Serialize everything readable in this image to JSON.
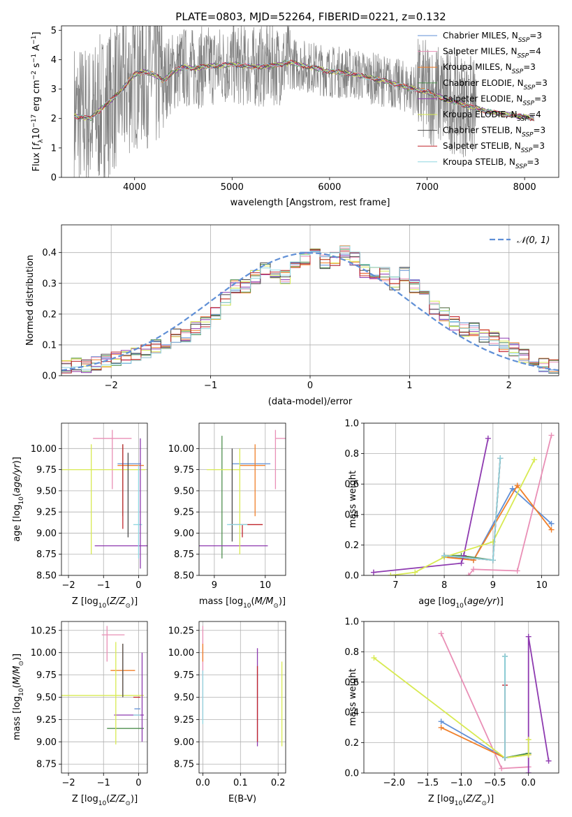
{
  "title": "PLATE=0803, MJD=52264, FIBERID=0221, z=0.132",
  "colors": {
    "Chabrier MILES": "#5f8fd6",
    "Salpeter MILES": "#e98fb6",
    "Kroupa MILES": "#f07f2a",
    "Chabrier ELODIE": "#4f8f4f",
    "Salpeter ELODIE": "#8e3ab0",
    "Kroupa ELODIE": "#d8ea52",
    "Chabrier STELIB": "#4a4a4a",
    "Salpeter STELIB": "#c0262c",
    "Kroupa STELIB": "#8fd6e0",
    "data": "#808080",
    "gauss": "#5f8fd6"
  },
  "chart_data": [
    {
      "type": "line",
      "panel": "spectrum",
      "title": "PLATE=0803, MJD=52264, FIBERID=0221, z=0.132",
      "xlabel": "wavelength [Angstrom, rest frame]",
      "ylabel": "Flux [fλ10⁻¹⁷ erg cm⁻² s⁻¹ A⁻¹]",
      "xlim": [
        3250,
        8350
      ],
      "ylim": [
        0,
        5.15
      ],
      "xticks": [
        4000,
        5000,
        6000,
        7000,
        8000
      ],
      "yticks": [
        0,
        1,
        2,
        3,
        4,
        5
      ],
      "grid": false,
      "legend_position": "top-right",
      "legend": [
        {
          "base": "Chabrier MILES, N",
          "sub": "SSP",
          "tail": "=3"
        },
        {
          "base": "Salpeter MILES, N",
          "sub": "SSP",
          "tail": "=4"
        },
        {
          "base": "Kroupa MILES, N",
          "sub": "SSP",
          "tail": "=3"
        },
        {
          "base": "Chabrier ELODIE, N",
          "sub": "SSP",
          "tail": "=3"
        },
        {
          "base": "Salpeter ELODIE, N",
          "sub": "SSP",
          "tail": "=3"
        },
        {
          "base": "Kroupa ELODIE, N",
          "sub": "SSP",
          "tail": "=4"
        },
        {
          "base": "Chabrier STELIB, N",
          "sub": "SSP",
          "tail": "=3"
        },
        {
          "base": "Salpeter STELIB, N",
          "sub": "SSP",
          "tail": "=3"
        },
        {
          "base": "Kroupa STELIB, N",
          "sub": "SSP",
          "tail": "=3"
        }
      ],
      "model_continuum": {
        "x": [
          3380,
          3450,
          3550,
          3650,
          3750,
          3850,
          3950,
          4000,
          4100,
          4200,
          4300,
          4400,
          4500,
          4600,
          4700,
          4800,
          4900,
          5000,
          5200,
          5400,
          5600,
          5800,
          6000,
          6200,
          6400,
          6600,
          6800,
          7000,
          7200,
          7400,
          7600,
          7800,
          8000,
          8100
        ],
        "y": [
          2.1,
          2.05,
          2.0,
          2.3,
          2.6,
          2.9,
          3.3,
          3.5,
          3.6,
          3.5,
          3.3,
          3.6,
          3.75,
          3.7,
          3.75,
          3.8,
          3.8,
          3.85,
          3.75,
          3.8,
          3.9,
          3.75,
          3.6,
          3.55,
          3.4,
          3.25,
          3.05,
          2.9,
          2.65,
          2.45,
          2.25,
          2.15,
          2.05,
          2.0
        ]
      }
    },
    {
      "type": "bar",
      "panel": "residuals",
      "xlabel": "(data-model)/error",
      "ylabel": "Normed distribution",
      "xlim": [
        -2.5,
        2.5
      ],
      "ylim": [
        0,
        0.49
      ],
      "xticks": [
        -2,
        -1,
        0,
        1,
        2
      ],
      "yticks": [
        0.0,
        0.1,
        0.2,
        0.3,
        0.4
      ],
      "grid": true,
      "legend_position": "top-right",
      "legend": [
        "𝒩(0, 1)"
      ],
      "gaussian": {
        "mean": 0,
        "sigma": 1
      },
      "bin_edges_range": [
        -2.5,
        2.5
      ],
      "bins": 50,
      "histogram": [
        0.03,
        0.035,
        0.03,
        0.04,
        0.05,
        0.055,
        0.06,
        0.07,
        0.08,
        0.095,
        0.11,
        0.13,
        0.13,
        0.155,
        0.17,
        0.2,
        0.25,
        0.29,
        0.29,
        0.32,
        0.35,
        0.34,
        0.32,
        0.36,
        0.38,
        0.39,
        0.37,
        0.38,
        0.4,
        0.38,
        0.34,
        0.33,
        0.33,
        0.3,
        0.33,
        0.29,
        0.26,
        0.22,
        0.2,
        0.17,
        0.15,
        0.15,
        0.13,
        0.12,
        0.1,
        0.085,
        0.065,
        0.05,
        0.035,
        0.03
      ]
    },
    {
      "type": "scatter",
      "panel": "age-vs-Z",
      "xlabel": "Z [log10(Z/Z⊙)]",
      "ylabel": "age [log10(age/yr)]",
      "xlim": [
        -2.2,
        0.25
      ],
      "ylim": [
        8.5,
        10.3
      ],
      "xticks": [
        -2,
        -1,
        0
      ],
      "yticks": [
        8.5,
        8.75,
        9.0,
        9.25,
        9.5,
        9.75,
        10.0
      ],
      "grid": true,
      "points": [
        {
          "model": "Chabrier MILES",
          "x": -0.05,
          "y": 9.82,
          "xerr": [
            0.55,
            0.12
          ],
          "yerr": [
            0.0,
            0.0
          ]
        },
        {
          "model": "Salpeter MILES",
          "x": -0.75,
          "y": 10.12,
          "xerr": [
            0.55,
            0.55
          ],
          "yerr": [
            0.6,
            0.1
          ]
        },
        {
          "model": "Kroupa MILES",
          "x": -0.05,
          "y": 9.8,
          "xerr": [
            0.55,
            0.2
          ],
          "yerr": [
            0.0,
            0.0
          ]
        },
        {
          "model": "Chabrier ELODIE",
          "x": -0.45,
          "y": 9.6,
          "xerr": [
            0.0,
            0.0
          ],
          "yerr": [
            0.4,
            0.45
          ]
        },
        {
          "model": "Salpeter ELODIE",
          "x": -0.5,
          "y": 8.85,
          "xerr": [
            0.75,
            0.75
          ],
          "yerr": [
            0.0,
            0.0
          ]
        },
        {
          "model": "Kroupa ELODIE",
          "x": -1.35,
          "y": 9.75,
          "xerr": [
            0.85,
            1.55
          ],
          "yerr": [
            1.0,
            0.3
          ]
        },
        {
          "model": "Chabrier STELIB",
          "x": -0.3,
          "y": 9.5,
          "xerr": [
            0.0,
            0.0
          ],
          "yerr": [
            0.55,
            0.45
          ]
        },
        {
          "model": "Salpeter STELIB",
          "x": -0.45,
          "y": 9.55,
          "xerr": [
            0.0,
            0.0
          ],
          "yerr": [
            0.5,
            0.5
          ]
        },
        {
          "model": "Kroupa STELIB",
          "x": 0.0,
          "y": 9.1,
          "xerr": [
            0.15,
            0.1
          ],
          "yerr": [
            0.4,
            0.7
          ]
        },
        {
          "model": "Salpeter ELODIE",
          "x": 0.05,
          "y": 9.3,
          "xerr": [
            0.0,
            0.0
          ],
          "yerr": [
            0.72,
            0.82
          ]
        }
      ]
    },
    {
      "type": "scatter",
      "panel": "age-vs-mass",
      "xlabel": "mass [log10(M/M⊙)]",
      "ylabel": "",
      "xlim": [
        8.7,
        10.4
      ],
      "ylim": [
        8.5,
        10.3
      ],
      "xticks": [
        9,
        10
      ],
      "yticks": [
        8.5,
        8.75,
        9.0,
        9.25,
        9.5,
        9.75,
        10.0
      ],
      "grid": true,
      "points": [
        {
          "model": "Chabrier MILES",
          "x": 9.85,
          "y": 9.82,
          "xerr": [
            0.5,
            0.25
          ],
          "yerr": [
            0.0,
            0.0
          ]
        },
        {
          "model": "Salpeter MILES",
          "x": 10.2,
          "y": 10.12,
          "xerr": [
            0.0,
            0.2
          ],
          "yerr": [
            0.6,
            0.1
          ]
        },
        {
          "model": "Kroupa MILES",
          "x": 9.8,
          "y": 9.8,
          "xerr": [
            0.3,
            0.2
          ],
          "yerr": [
            0.6,
            0.25
          ]
        },
        {
          "model": "Chabrier ELODIE",
          "x": 9.15,
          "y": 9.4,
          "xerr": [
            0.0,
            0.0
          ],
          "yerr": [
            0.7,
            0.75
          ]
        },
        {
          "model": "Salpeter ELODIE",
          "x": 9.35,
          "y": 8.85,
          "xerr": [
            0.65,
            0.7
          ],
          "yerr": [
            0.0,
            0.0
          ]
        },
        {
          "model": "Kroupa ELODIE",
          "x": 9.5,
          "y": 9.75,
          "xerr": [
            0.65,
            0.0
          ],
          "yerr": [
            1.0,
            0.25
          ]
        },
        {
          "model": "Chabrier STELIB",
          "x": 9.35,
          "y": 9.5,
          "xerr": [
            0.0,
            0.0
          ],
          "yerr": [
            0.6,
            0.5
          ]
        },
        {
          "model": "Salpeter STELIB",
          "x": 9.55,
          "y": 9.1,
          "xerr": [
            0.25,
            0.4
          ],
          "yerr": [
            0.15,
            0.0
          ]
        },
        {
          "model": "Kroupa STELIB",
          "x": 9.65,
          "y": 9.1,
          "xerr": [
            0.4,
            0.0
          ],
          "yerr": [
            0.0,
            0.0
          ]
        }
      ]
    },
    {
      "type": "line",
      "panel": "mass-weight-vs-age",
      "xlabel": "age [log10(age/yr)]",
      "ylabel": "mass weight",
      "xlim": [
        6.35,
        10.35
      ],
      "ylim": [
        0,
        1.0
      ],
      "xticks": [
        7,
        8,
        9,
        10
      ],
      "yticks": [
        0.0,
        0.2,
        0.4,
        0.6,
        0.8,
        1.0
      ],
      "grid": true,
      "series": [
        {
          "model": "Chabrier MILES",
          "x": [
            8.0,
            8.6,
            9.4,
            10.2
          ],
          "y": [
            0.13,
            0.1,
            0.57,
            0.34
          ]
        },
        {
          "model": "Salpeter MILES",
          "x": [
            8.5,
            8.6,
            9.5,
            10.2
          ],
          "y": [
            0.0,
            0.04,
            0.03,
            0.92
          ]
        },
        {
          "model": "Kroupa MILES",
          "x": [
            8.0,
            8.6,
            9.5,
            10.2
          ],
          "y": [
            0.12,
            0.1,
            0.59,
            0.3
          ]
        },
        {
          "model": "Chabrier ELODIE",
          "x": [
            8.0,
            8.35,
            9.0
          ],
          "y": [
            0.13,
            0.13,
            0.1
          ]
        },
        {
          "model": "Salpeter ELODIE",
          "x": [
            6.55,
            8.35,
            8.4,
            8.9
          ],
          "y": [
            0.02,
            0.08,
            0.13,
            0.9
          ]
        },
        {
          "model": "Kroupa ELODIE",
          "x": [
            6.9,
            7.4,
            8.0,
            9.0,
            9.85
          ],
          "y": [
            0.0,
            0.02,
            0.12,
            0.22,
            0.76
          ]
        },
        {
          "model": "Chabrier STELIB",
          "x": [
            8.0,
            9.0,
            9.15
          ],
          "y": [
            0.13,
            0.1,
            0.77
          ]
        },
        {
          "model": "Salpeter STELIB",
          "x": [
            8.0,
            9.0,
            9.15
          ],
          "y": [
            0.13,
            0.1,
            0.77
          ]
        },
        {
          "model": "Kroupa STELIB",
          "x": [
            8.0,
            9.0,
            9.15
          ],
          "y": [
            0.13,
            0.1,
            0.77
          ]
        }
      ]
    },
    {
      "type": "scatter",
      "panel": "mass-vs-Z",
      "xlabel": "Z [log10(Z/Z⊙)]",
      "ylabel": "mass [log10(M/M⊙)]",
      "xlim": [
        -2.2,
        0.25
      ],
      "ylim": [
        8.65,
        10.35
      ],
      "xticks": [
        -2,
        -1,
        0
      ],
      "yticks": [
        8.75,
        9.0,
        9.25,
        9.5,
        9.75,
        10.0,
        10.25
      ],
      "grid": true,
      "points": [
        {
          "model": "Chabrier MILES",
          "x": 0.0,
          "y": 9.37,
          "xerr": [
            0.12,
            0.05
          ],
          "yerr": [
            0.0,
            0.0
          ]
        },
        {
          "model": "Salpeter MILES",
          "x": -0.9,
          "y": 10.2,
          "xerr": [
            0.15,
            0.5
          ],
          "yerr": [
            0.3,
            0.1
          ]
        },
        {
          "model": "Kroupa MILES",
          "x": -0.45,
          "y": 9.8,
          "xerr": [
            0.35,
            0.35
          ],
          "yerr": [
            0.3,
            0.3
          ]
        },
        {
          "model": "Chabrier ELODIE",
          "x": -0.3,
          "y": 9.15,
          "xerr": [
            0.6,
            0.45
          ],
          "yerr": [
            0.0,
            0.0
          ]
        },
        {
          "model": "Salpeter ELODIE",
          "x": -0.3,
          "y": 9.3,
          "xerr": [
            0.4,
            0.45
          ],
          "yerr": [
            0.0,
            0.0
          ]
        },
        {
          "model": "Kroupa ELODIE",
          "x": -0.65,
          "y": 9.52,
          "xerr": [
            1.55,
            0.8
          ],
          "yerr": [
            0.55,
            0.6
          ]
        },
        {
          "model": "Chabrier STELIB",
          "x": -0.45,
          "y": 9.6,
          "xerr": [
            0.0,
            0.0
          ],
          "yerr": [
            0.1,
            0.5
          ]
        },
        {
          "model": "Salpeter STELIB",
          "x": -0.05,
          "y": 9.5,
          "xerr": [
            0.1,
            0.1
          ],
          "yerr": [
            0.0,
            0.0
          ]
        },
        {
          "model": "Kroupa STELIB",
          "x": -0.05,
          "y": 9.3,
          "xerr": [
            0.1,
            0.1
          ],
          "yerr": [
            0.0,
            0.0
          ]
        },
        {
          "model": "Salpeter ELODIE",
          "x": 0.1,
          "y": 9.7,
          "xerr": [
            0.0,
            0.0
          ],
          "yerr": [
            0.7,
            0.3
          ]
        }
      ]
    },
    {
      "type": "scatter",
      "panel": "mass-vs-EBV",
      "xlabel": "E(B-V)",
      "ylabel": "",
      "xlim": [
        -0.01,
        0.22
      ],
      "ylim": [
        8.65,
        10.35
      ],
      "xticks": [
        0.0,
        0.1,
        0.2
      ],
      "yticks": [
        8.75,
        9.0,
        9.25,
        9.5,
        9.75,
        10.0,
        10.25
      ],
      "grid": true,
      "points": [
        {
          "model": "Salpeter MILES",
          "x": 0.0,
          "y": 9.8,
          "xerr": [
            0.0,
            0.0
          ],
          "yerr": [
            0.55,
            0.5
          ]
        },
        {
          "model": "Kroupa MILES",
          "x": 0.0,
          "y": 9.9,
          "xerr": [
            0.0,
            0.0
          ],
          "yerr": [
            0.0,
            0.2
          ]
        },
        {
          "model": "Salpeter ELODIE",
          "x": 0.145,
          "y": 9.5,
          "xerr": [
            0.0,
            0.0
          ],
          "yerr": [
            0.55,
            0.55
          ]
        },
        {
          "model": "Kroupa ELODIE",
          "x": 0.21,
          "y": 9.45,
          "xerr": [
            0.0,
            0.0
          ],
          "yerr": [
            0.5,
            0.45
          ]
        },
        {
          "model": "Salpeter STELIB",
          "x": 0.145,
          "y": 9.4,
          "xerr": [
            0.0,
            0.0
          ],
          "yerr": [
            0.4,
            0.45
          ]
        },
        {
          "model": "Kroupa STELIB",
          "x": 0.0,
          "y": 9.5,
          "xerr": [
            0.0,
            0.0
          ],
          "yerr": [
            0.3,
            0.3
          ]
        }
      ]
    },
    {
      "type": "line",
      "panel": "mass-weight-vs-Z",
      "xlabel": "Z [log10(Z/Z⊙)]",
      "ylabel": "mass weight",
      "xlim": [
        -2.45,
        0.45
      ],
      "ylim": [
        0,
        1.0
      ],
      "xticks": [
        -2.0,
        -1.5,
        -1.0,
        -0.5,
        0.0
      ],
      "yticks": [
        0.0,
        0.2,
        0.4,
        0.6,
        0.8,
        1.0
      ],
      "grid": true,
      "series": [
        {
          "model": "Chabrier MILES",
          "x": [
            -1.3,
            -0.35,
            0.0
          ],
          "y": [
            0.34,
            0.1,
            0.13
          ]
        },
        {
          "model": "Salpeter MILES",
          "x": [
            -1.3,
            -0.4,
            0.0
          ],
          "y": [
            0.92,
            0.03,
            0.04
          ]
        },
        {
          "model": "Kroupa MILES",
          "x": [
            -1.3,
            -0.35,
            0.0
          ],
          "y": [
            0.3,
            0.1,
            0.12
          ]
        },
        {
          "model": "Chabrier ELODIE",
          "x": [
            -0.35,
            0.0
          ],
          "y": [
            0.1,
            0.13
          ]
        },
        {
          "model": "Salpeter ELODIE",
          "x": [
            0.0,
            0.0,
            0.3
          ],
          "y": [
            0.0,
            0.9,
            0.08
          ]
        },
        {
          "model": "Kroupa ELODIE",
          "x": [
            -2.3,
            -0.35,
            0.0,
            0.0
          ],
          "y": [
            0.76,
            0.1,
            0.12,
            0.22
          ]
        },
        {
          "model": "Chabrier STELIB",
          "x": [
            -0.35,
            -0.35
          ],
          "y": [
            0.1,
            0.77
          ]
        },
        {
          "model": "Salpeter STELIB",
          "x": [
            -0.35,
            -0.35
          ],
          "y": [
            0.1,
            0.58
          ]
        },
        {
          "model": "Kroupa STELIB",
          "x": [
            -0.35,
            -0.35
          ],
          "y": [
            0.1,
            0.77
          ]
        }
      ]
    }
  ]
}
